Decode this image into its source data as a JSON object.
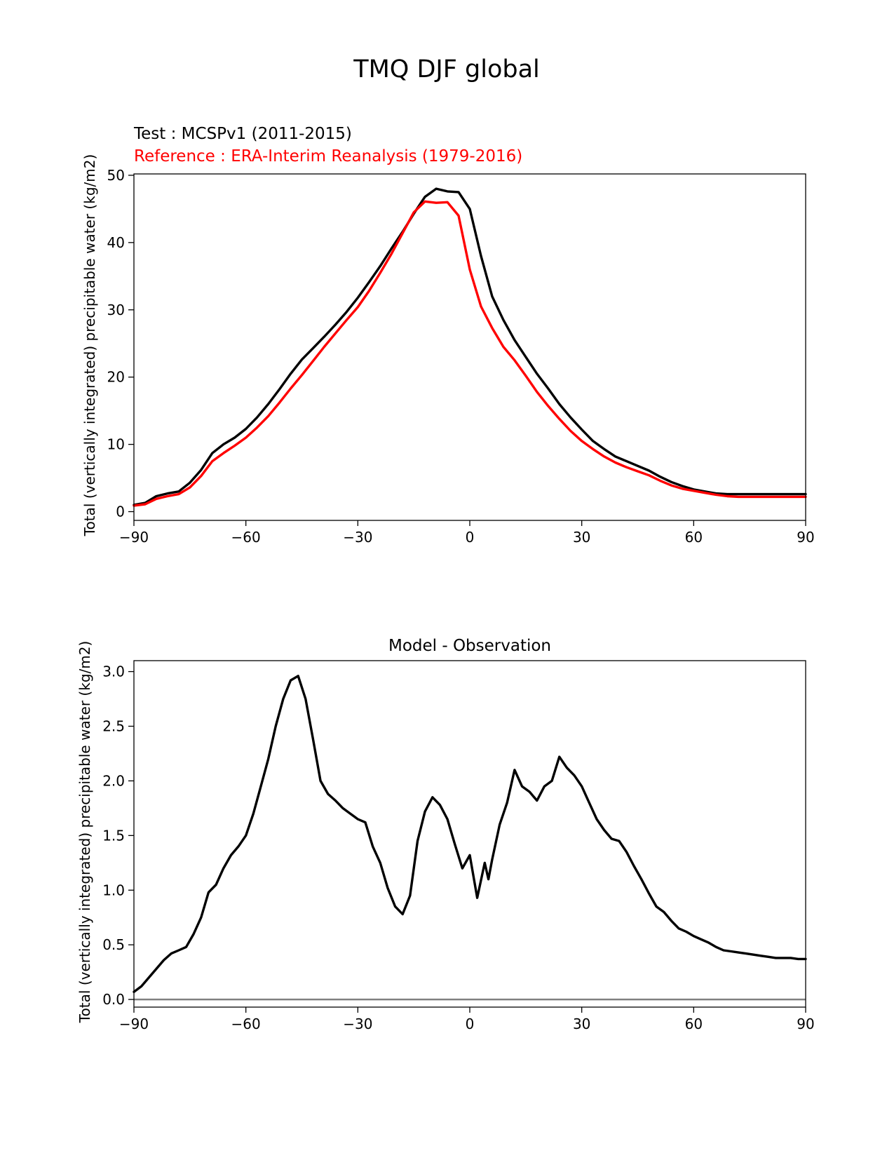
{
  "figure": {
    "title": "TMQ DJF global"
  },
  "colors": {
    "test": "#000000",
    "reference": "#ff0000",
    "zero_line": "#808080"
  },
  "chart_data": [
    {
      "type": "line",
      "title": "",
      "test_label": "Test : MCSPv1 (2011-2015)",
      "reference_label": "Reference : ERA-Interim Reanalysis (1979-2016)",
      "xlabel": "",
      "ylabel": "Total (vertically integrated) precipitable water (kg/m2)",
      "xlim": [
        -90,
        90
      ],
      "ylim": [
        -1.3,
        50.2
      ],
      "xticks": [
        -90,
        -60,
        -30,
        0,
        30,
        60,
        90
      ],
      "xtick_labels": [
        "−90",
        "−60",
        "−30",
        "0",
        "30",
        "60",
        "90"
      ],
      "yticks": [
        0,
        10,
        20,
        30,
        40,
        50
      ],
      "ytick_labels": [
        "0",
        "10",
        "20",
        "30",
        "40",
        "50"
      ],
      "grid": false,
      "series": [
        {
          "role": "test",
          "color": "#000000",
          "x": [
            -90,
            -87,
            -84,
            -81,
            -78,
            -75,
            -72,
            -69,
            -66,
            -63,
            -60,
            -57,
            -54,
            -51,
            -48,
            -45,
            -42,
            -39,
            -36,
            -33,
            -30,
            -27,
            -24,
            -21,
            -18,
            -15,
            -12,
            -9,
            -6,
            -3,
            0,
            3,
            6,
            9,
            12,
            15,
            18,
            21,
            24,
            27,
            30,
            33,
            36,
            39,
            42,
            45,
            48,
            51,
            54,
            57,
            60,
            63,
            66,
            69,
            72,
            75,
            78,
            81,
            84,
            87,
            90
          ],
          "y": [
            1.0,
            1.3,
            2.3,
            2.7,
            3.0,
            4.3,
            6.2,
            8.7,
            10.0,
            11.0,
            12.3,
            14.0,
            16.0,
            18.2,
            20.5,
            22.6,
            24.3,
            26.0,
            27.8,
            29.7,
            31.8,
            34.1,
            36.5,
            39.1,
            41.6,
            44.3,
            46.8,
            48.0,
            47.6,
            47.5,
            45.0,
            38.0,
            32.0,
            28.5,
            25.5,
            23.0,
            20.5,
            18.3,
            16.0,
            14.0,
            12.2,
            10.5,
            9.3,
            8.2,
            7.5,
            6.8,
            6.1,
            5.2,
            4.4,
            3.8,
            3.3,
            3.0,
            2.7,
            2.6,
            2.6,
            2.6,
            2.6,
            2.6,
            2.6,
            2.6,
            2.6
          ]
        },
        {
          "role": "reference",
          "color": "#ff0000",
          "x": [
            -90,
            -87,
            -84,
            -81,
            -78,
            -75,
            -72,
            -69,
            -66,
            -63,
            -60,
            -57,
            -54,
            -51,
            -48,
            -45,
            -42,
            -39,
            -36,
            -33,
            -30,
            -27,
            -24,
            -21,
            -18,
            -15,
            -12,
            -9,
            -6,
            -3,
            0,
            3,
            6,
            9,
            12,
            15,
            18,
            21,
            24,
            27,
            30,
            33,
            36,
            39,
            42,
            45,
            48,
            51,
            54,
            57,
            60,
            63,
            66,
            69,
            72,
            75,
            78,
            81,
            84,
            87,
            90
          ],
          "y": [
            0.9,
            1.1,
            1.9,
            2.3,
            2.6,
            3.6,
            5.3,
            7.5,
            8.7,
            9.8,
            11.0,
            12.5,
            14.2,
            16.2,
            18.3,
            20.3,
            22.4,
            24.5,
            26.5,
            28.5,
            30.4,
            32.8,
            35.5,
            38.3,
            41.4,
            44.5,
            46.1,
            45.9,
            46.0,
            44.0,
            36.0,
            30.5,
            27.3,
            24.5,
            22.5,
            20.2,
            17.8,
            15.7,
            13.8,
            12.0,
            10.5,
            9.3,
            8.2,
            7.3,
            6.6,
            6.0,
            5.4,
            4.6,
            3.9,
            3.4,
            3.1,
            2.8,
            2.5,
            2.3,
            2.2,
            2.2,
            2.2,
            2.2,
            2.2,
            2.2,
            2.2
          ]
        }
      ]
    },
    {
      "type": "line",
      "title": "Model - Observation",
      "xlabel": "",
      "ylabel": "Total (vertically integrated) precipitable water (kg/m2)",
      "xlim": [
        -90,
        90
      ],
      "ylim": [
        -0.07,
        3.1
      ],
      "xticks": [
        -90,
        -60,
        -30,
        0,
        30,
        60,
        90
      ],
      "xtick_labels": [
        "−90",
        "−60",
        "−30",
        "0",
        "30",
        "60",
        "90"
      ],
      "yticks": [
        0.0,
        0.5,
        1.0,
        1.5,
        2.0,
        2.5,
        3.0
      ],
      "ytick_labels": [
        "0.0",
        "0.5",
        "1.0",
        "1.5",
        "2.0",
        "2.5",
        "3.0"
      ],
      "grid": false,
      "zero_line": 0.0,
      "series": [
        {
          "role": "difference",
          "color": "#000000",
          "x": [
            -90,
            -88,
            -86,
            -84,
            -82,
            -80,
            -78,
            -76,
            -74,
            -72,
            -70,
            -68,
            -66,
            -64,
            -62,
            -60,
            -58,
            -56,
            -54,
            -52,
            -50,
            -48,
            -46,
            -44,
            -42,
            -40,
            -38,
            -36,
            -34,
            -32,
            -30,
            -28,
            -26,
            -24,
            -22,
            -20,
            -18,
            -16,
            -14,
            -12,
            -10,
            -8,
            -6,
            -4,
            -2,
            0,
            2,
            4,
            5,
            6,
            8,
            10,
            12,
            14,
            16,
            18,
            20,
            22,
            24,
            26,
            28,
            30,
            32,
            34,
            36,
            38,
            40,
            42,
            44,
            46,
            48,
            50,
            52,
            54,
            56,
            58,
            60,
            62,
            64,
            66,
            68,
            70,
            72,
            74,
            76,
            78,
            80,
            82,
            84,
            86,
            88,
            90
          ],
          "y": [
            0.07,
            0.12,
            0.2,
            0.28,
            0.36,
            0.42,
            0.45,
            0.48,
            0.6,
            0.75,
            0.98,
            1.05,
            1.2,
            1.32,
            1.4,
            1.5,
            1.7,
            1.95,
            2.2,
            2.5,
            2.75,
            2.92,
            2.96,
            2.75,
            2.38,
            2.0,
            1.88,
            1.82,
            1.75,
            1.7,
            1.65,
            1.62,
            1.4,
            1.25,
            1.02,
            0.85,
            0.78,
            0.95,
            1.45,
            1.72,
            1.85,
            1.78,
            1.65,
            1.42,
            1.2,
            1.32,
            0.93,
            1.25,
            1.1,
            1.28,
            1.6,
            1.8,
            2.1,
            1.95,
            1.9,
            1.82,
            1.95,
            2.0,
            2.22,
            2.12,
            2.05,
            1.95,
            1.8,
            1.65,
            1.55,
            1.47,
            1.45,
            1.35,
            1.22,
            1.1,
            0.97,
            0.85,
            0.8,
            0.72,
            0.65,
            0.62,
            0.58,
            0.55,
            0.52,
            0.48,
            0.45,
            0.44,
            0.43,
            0.42,
            0.41,
            0.4,
            0.39,
            0.38,
            0.38,
            0.38,
            0.37,
            0.37
          ]
        }
      ]
    }
  ]
}
